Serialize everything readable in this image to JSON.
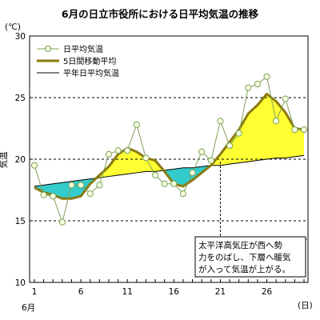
{
  "chart_data": {
    "type": "line",
    "title": "6月の日立市役所における日平均気温の推移",
    "y_unit": "(℃)",
    "ylabel": "気温",
    "x_unit": "(日)",
    "x_month_label": "6月",
    "xlim": [
      1,
      30
    ],
    "ylim": [
      10,
      30
    ],
    "y_ticks": [
      10,
      15,
      20,
      25,
      30
    ],
    "y_gridlines": [
      15,
      20,
      25
    ],
    "x_ticks": [
      1,
      6,
      11,
      16,
      21,
      26
    ],
    "legend_position": "top-left",
    "series": [
      {
        "name": "日平均気温",
        "color": "#7fa05a",
        "x": [
          1,
          2,
          3,
          4,
          5,
          6,
          7,
          8,
          9,
          10,
          11,
          12,
          13,
          14,
          15,
          16,
          17,
          18,
          19,
          20,
          21,
          22,
          23,
          24,
          25,
          26,
          27,
          28,
          29,
          30
        ],
        "values": [
          19.5,
          17.1,
          17.0,
          14.9,
          17.9,
          17.9,
          17.2,
          17.9,
          20.4,
          20.7,
          20.7,
          22.8,
          20.1,
          18.7,
          18.0,
          18.0,
          17.2,
          18.9,
          20.6,
          19.9,
          23.1,
          21.1,
          22.1,
          25.8,
          26.1,
          26.7,
          23.1,
          24.9,
          22.4,
          22.4
        ]
      },
      {
        "name": "5日間移動平均",
        "color": "#8a7a10",
        "x": [
          1,
          2,
          3,
          4,
          5,
          6,
          7,
          8,
          9,
          10,
          11,
          12,
          13,
          14,
          15,
          16,
          17,
          18,
          19,
          20,
          21,
          22,
          23,
          24,
          25,
          26,
          27,
          28,
          29,
          30
        ],
        "values": [
          17.7,
          17.3,
          17.1,
          16.8,
          16.8,
          17.0,
          18.0,
          18.7,
          19.4,
          20.4,
          20.9,
          20.6,
          20.1,
          19.9,
          19.0,
          18.0,
          17.8,
          18.3,
          18.9,
          19.5,
          20.4,
          21.4,
          22.4,
          23.7,
          24.4,
          25.3,
          24.7,
          23.8,
          22.5,
          22.4
        ]
      },
      {
        "name": "平年日平均気温",
        "color": "#000000",
        "x": [
          1,
          2,
          3,
          4,
          5,
          6,
          7,
          8,
          9,
          10,
          11,
          12,
          13,
          14,
          15,
          16,
          17,
          18,
          19,
          20,
          21,
          22,
          23,
          24,
          25,
          26,
          27,
          28,
          29,
          30
        ],
        "values": [
          17.8,
          17.9,
          18.0,
          18.1,
          18.2,
          18.3,
          18.4,
          18.5,
          18.6,
          18.7,
          18.8,
          18.9,
          19.0,
          19.0,
          19.1,
          19.2,
          19.3,
          19.3,
          19.4,
          19.5,
          19.5,
          19.6,
          19.7,
          19.8,
          19.9,
          20.0,
          20.1,
          20.1,
          20.2,
          20.3
        ]
      }
    ],
    "fill_above_color": "#ffff33",
    "fill_below_color": "#33cccc",
    "annotation": {
      "lines": [
        "太平洋高気圧が西へ勢",
        "力をのばし、下層へ暖気",
        "が入って気温が上がる。"
      ],
      "arrow_from_day": 21,
      "arrow_to_day": 30
    }
  }
}
